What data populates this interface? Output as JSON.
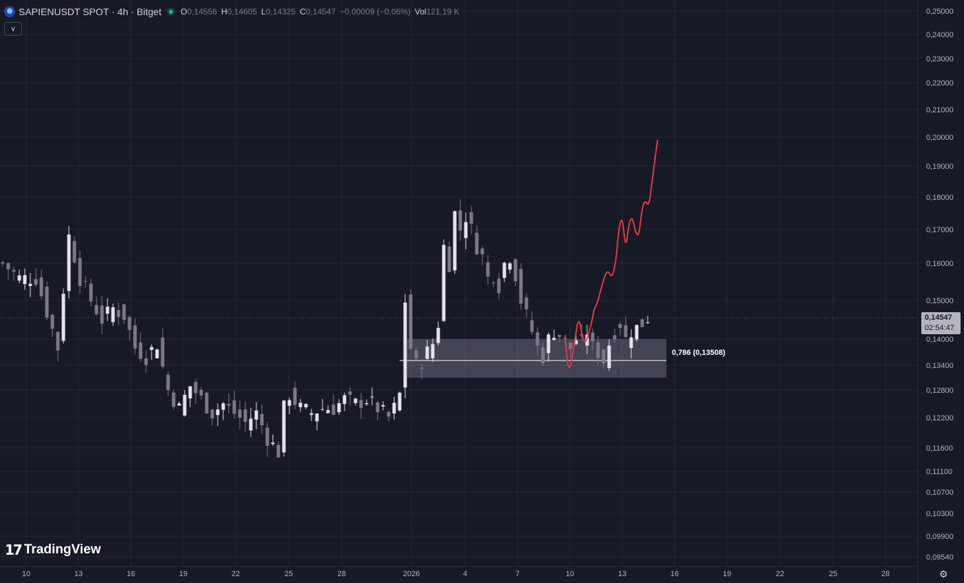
{
  "legend": {
    "title": "SAPIENUSDT SPOT · 4h · Bitget",
    "o_label": "O",
    "o_value": "0,14556",
    "h_label": "H",
    "h_value": "0,14605",
    "l_label": "L",
    "l_value": "0,14325",
    "c_label": "C",
    "c_value": "0,14547",
    "change": "−0,00009 (−0,06%)",
    "vol_label": "Vol",
    "vol_value": "121,19 K"
  },
  "current_price": {
    "price": "0,14547",
    "countdown": "02:54:47"
  },
  "fib_label": "0,786 (0,13508)",
  "logo": {
    "text": "TradingView"
  },
  "colors": {
    "background": "#161a25",
    "candle": "#e0e3eb",
    "drawing": "#e5364a",
    "zone": "#5d606b"
  },
  "chart_data": {
    "type": "candlestick",
    "y_axis_labels": [
      "0,25000",
      "0,24000",
      "0,23000",
      "0,22000",
      "0,21000",
      "0,20000",
      "0,19000",
      "0,18000",
      "0,17000",
      "0,16000",
      "0,15000",
      "0,14000",
      "0,13400",
      "0,12800",
      "0,12200",
      "0,11600",
      "0,11100",
      "0,10700",
      "0,10300",
      "0,09900",
      "0,09540"
    ],
    "x_axis_labels": [
      "10",
      "13",
      "16",
      "19",
      "22",
      "25",
      "28",
      "2026",
      "4",
      "7",
      "10",
      "13",
      "16",
      "19",
      "22",
      "25",
      "28"
    ],
    "candle_anchors": [
      [
        0,
        0.16
      ],
      [
        3,
        0.156
      ],
      [
        6,
        0.156
      ],
      [
        8,
        0.147
      ],
      [
        10,
        0.138
      ],
      [
        12,
        0.168
      ],
      [
        14,
        0.156
      ],
      [
        16,
        0.15
      ],
      [
        18,
        0.145
      ],
      [
        20,
        0.148
      ],
      [
        22,
        0.146
      ],
      [
        24,
        0.138
      ],
      [
        26,
        0.136
      ],
      [
        28,
        0.139
      ],
      [
        30,
        0.128
      ],
      [
        32,
        0.124
      ],
      [
        34,
        0.129
      ],
      [
        36,
        0.126
      ],
      [
        38,
        0.123
      ],
      [
        40,
        0.125
      ],
      [
        42,
        0.123
      ],
      [
        44,
        0.121
      ],
      [
        46,
        0.123
      ],
      [
        48,
        0.118
      ],
      [
        50,
        0.115
      ],
      [
        51,
        0.124
      ],
      [
        52,
        0.127
      ],
      [
        54,
        0.124
      ],
      [
        56,
        0.123
      ],
      [
        58,
        0.124
      ],
      [
        60,
        0.124
      ],
      [
        62,
        0.126
      ],
      [
        64,
        0.125
      ],
      [
        66,
        0.126
      ],
      [
        68,
        0.124
      ],
      [
        70,
        0.122
      ],
      [
        71,
        0.124
      ],
      [
        72,
        0.127
      ],
      [
        73,
        0.15
      ],
      [
        74,
        0.138
      ],
      [
        75,
        0.134
      ],
      [
        76,
        0.135
      ],
      [
        77,
        0.137
      ],
      [
        78,
        0.139
      ],
      [
        79,
        0.144
      ],
      [
        80,
        0.165
      ],
      [
        81,
        0.16
      ],
      [
        82,
        0.175
      ],
      [
        83,
        0.17
      ],
      [
        84,
        0.174
      ],
      [
        85,
        0.17
      ],
      [
        86,
        0.165
      ],
      [
        87,
        0.162
      ],
      [
        88,
        0.156
      ],
      [
        89,
        0.157
      ],
      [
        90,
        0.154
      ],
      [
        91,
        0.16
      ],
      [
        92,
        0.162
      ],
      [
        93,
        0.157
      ],
      [
        94,
        0.15
      ],
      [
        95,
        0.146
      ],
      [
        96,
        0.142
      ],
      [
        97,
        0.138
      ],
      [
        98,
        0.136
      ],
      [
        99,
        0.14
      ],
      [
        100,
        0.142
      ],
      [
        101,
        0.141
      ],
      [
        102,
        0.139
      ],
      [
        103,
        0.138
      ],
      [
        104,
        0.14
      ],
      [
        105,
        0.139
      ],
      [
        106,
        0.142
      ],
      [
        107,
        0.138
      ],
      [
        108,
        0.137
      ],
      [
        109,
        0.135
      ],
      [
        110,
        0.139
      ],
      [
        111,
        0.142
      ],
      [
        112,
        0.144
      ],
      [
        113,
        0.14
      ],
      [
        114,
        0.142
      ],
      [
        115,
        0.143
      ],
      [
        116,
        0.144
      ],
      [
        117,
        0.1455
      ]
    ],
    "fib_level": 0.13508,
    "zone": {
      "top": 0.14,
      "bottom": 0.131
    },
    "projection_path": [
      [
        102,
        0.141
      ],
      [
        102.7,
        0.131
      ],
      [
        103.8,
        0.14
      ],
      [
        104.5,
        0.146
      ],
      [
        105.2,
        0.14
      ],
      [
        105.8,
        0.139
      ],
      [
        106.8,
        0.144
      ],
      [
        107.3,
        0.148
      ],
      [
        107.8,
        0.149
      ],
      [
        108.5,
        0.153
      ],
      [
        109.3,
        0.157
      ],
      [
        109.8,
        0.158
      ],
      [
        110.5,
        0.156
      ],
      [
        111.2,
        0.16
      ],
      [
        111.8,
        0.171
      ],
      [
        112.4,
        0.174
      ],
      [
        113,
        0.164
      ],
      [
        113.6,
        0.172
      ],
      [
        114.2,
        0.174
      ],
      [
        114.8,
        0.169
      ],
      [
        115.4,
        0.168
      ],
      [
        116,
        0.177
      ],
      [
        116.6,
        0.179
      ],
      [
        117.2,
        0.177
      ],
      [
        117.8,
        0.185
      ],
      [
        118.5,
        0.195
      ],
      [
        118.8,
        0.199
      ]
    ]
  }
}
